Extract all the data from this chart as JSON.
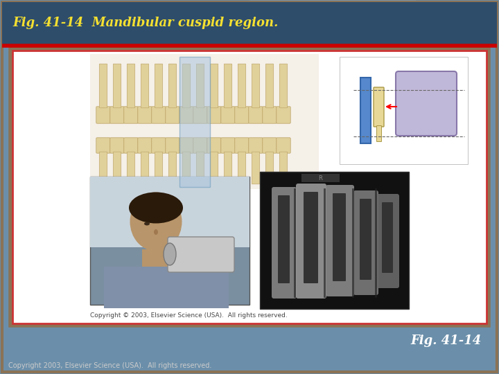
{
  "title": "Fig. 41-14  Mandibular cuspid region.",
  "fig_label": "Fig. 41-14",
  "copyright_bottom": "Copyright 2003, Elsevier Science (USA).  All rights reserved.",
  "copyright_inner": "Copyright © 2003, Elsevier Science (USA).  All rights reserved.",
  "slide_bg": "#6b8faa",
  "title_color": "#f5e030",
  "title_bg": "#3a5a78",
  "red_line_color": "#cc0000",
  "inner_box_bg": "#ffffff",
  "inner_box_border_outer": "#8B7355",
  "inner_box_border_inner": "#cc2222",
  "fig_label_color": "#ffffff",
  "bottom_text_color": "#cccccc",
  "tooth_color": "#e0d09a",
  "highlight_color": "#aac4de",
  "figsize": [
    7.2,
    5.4
  ],
  "dpi": 100
}
